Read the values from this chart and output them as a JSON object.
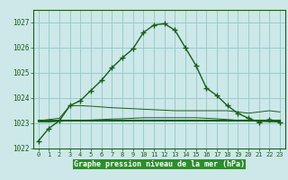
{
  "title": "Graphe pression niveau de la mer (hPa)",
  "x_labels": [
    0,
    1,
    2,
    3,
    4,
    5,
    6,
    7,
    8,
    9,
    10,
    11,
    12,
    13,
    14,
    15,
    16,
    17,
    18,
    19,
    20,
    21,
    22,
    23
  ],
  "ylim": [
    1022,
    1027.5
  ],
  "yticks": [
    1022,
    1023,
    1024,
    1025,
    1026,
    1027
  ],
  "background_color": "#cce8e8",
  "grid_color": "#99cccc",
  "line_color": "#1a5c1a",
  "title_bg": "#2d8c2d",
  "title_fg": "#ffffff",
  "main_series": [
    1022.3,
    1022.8,
    1023.1,
    1023.7,
    1023.9,
    1024.3,
    1024.7,
    1025.2,
    1025.6,
    1025.95,
    1026.6,
    1026.9,
    1026.95,
    1026.7,
    1026.0,
    1025.3,
    1024.4,
    1024.1,
    1023.7,
    1023.4,
    1023.2,
    1023.05,
    1023.15,
    1023.05
  ],
  "flat_series1": [
    1023.1,
    1023.15,
    1023.2,
    1023.7,
    1023.7,
    1023.68,
    1023.65,
    1023.62,
    1023.6,
    1023.58,
    1023.56,
    1023.54,
    1023.52,
    1023.5,
    1023.5,
    1023.5,
    1023.5,
    1023.5,
    1023.5,
    1023.45,
    1023.4,
    1023.45,
    1023.5,
    1023.45
  ],
  "flat_series2": [
    1023.05,
    1023.05,
    1023.08,
    1023.1,
    1023.12,
    1023.13,
    1023.15,
    1023.17,
    1023.18,
    1023.2,
    1023.22,
    1023.22,
    1023.22,
    1023.22,
    1023.22,
    1023.22,
    1023.2,
    1023.18,
    1023.15,
    1023.12,
    1023.1,
    1023.08,
    1023.06,
    1023.05
  ],
  "flat_series3": [
    1023.1,
    1023.1,
    1023.1,
    1023.1,
    1023.1,
    1023.1,
    1023.1,
    1023.1,
    1023.1,
    1023.1,
    1023.1,
    1023.1,
    1023.1,
    1023.1,
    1023.1,
    1023.1,
    1023.1,
    1023.1,
    1023.1,
    1023.1,
    1023.1,
    1023.1,
    1023.1,
    1023.1
  ]
}
